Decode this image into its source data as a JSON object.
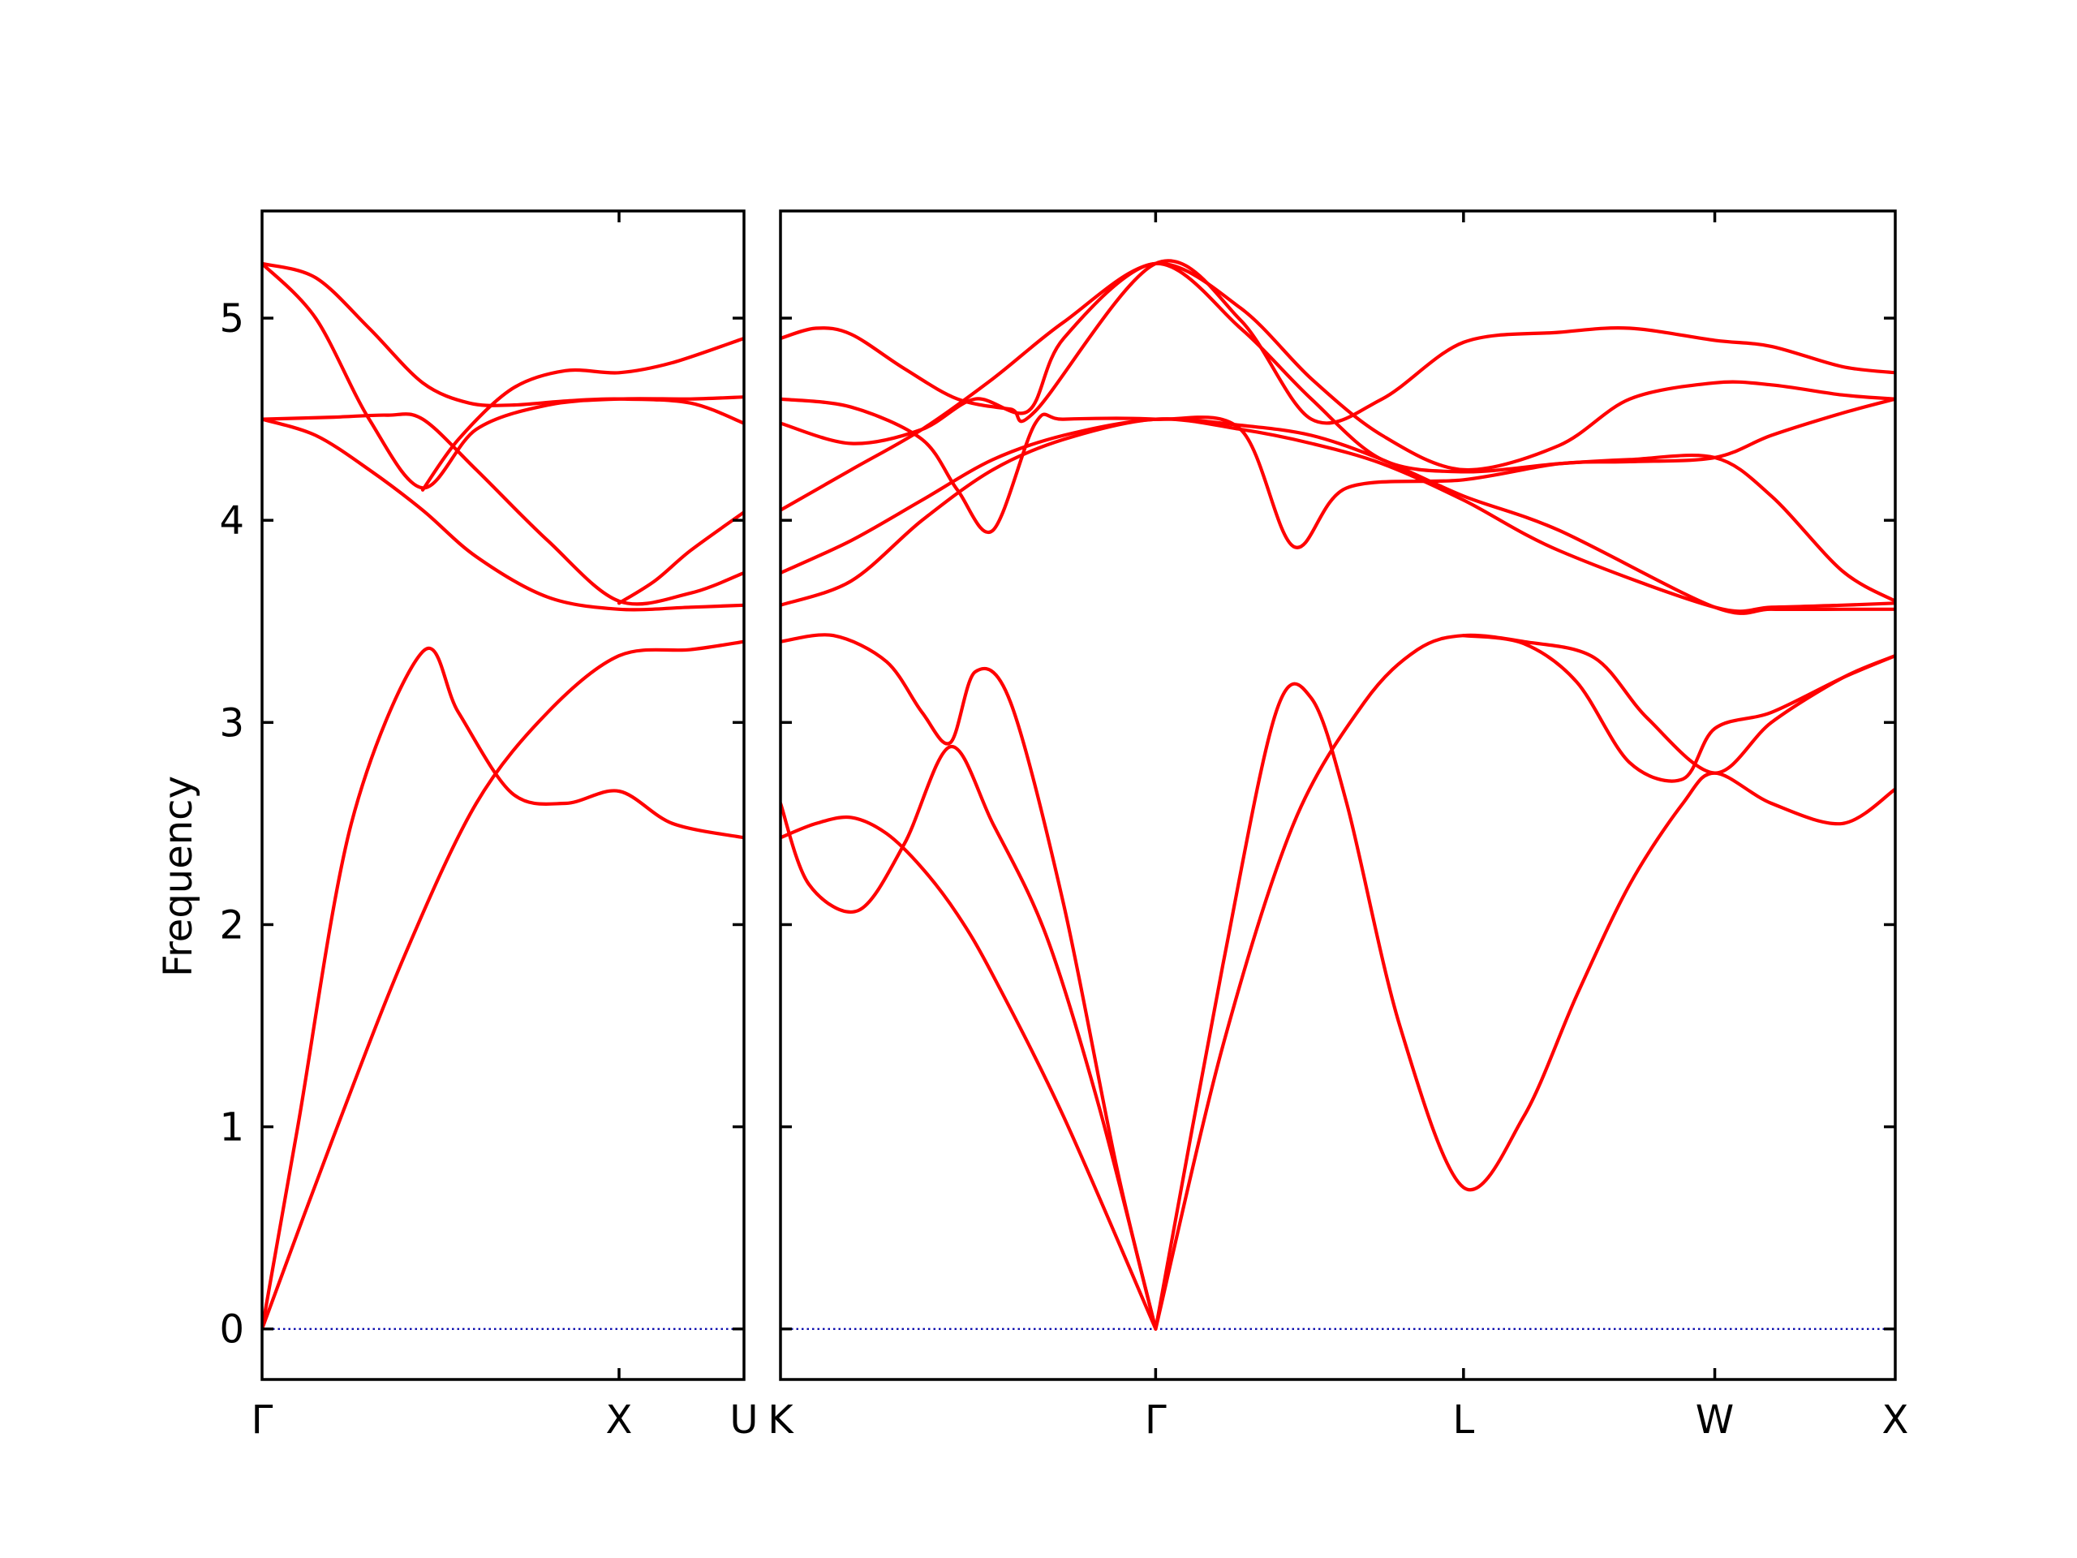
{
  "chart_data": {
    "type": "line",
    "ylabel": "Frequency",
    "ylim": [
      -0.25,
      5.53
    ],
    "yticks": [
      0,
      1,
      2,
      3,
      4,
      5
    ],
    "colors": {
      "bands": "#ff0000",
      "zero_line": "#0000aa",
      "axes": "#000000"
    },
    "panels": [
      {
        "xticks": [
          "Γ",
          "X",
          "U"
        ],
        "xlim": [
          0,
          1.35
        ],
        "xtick_positions": [
          0,
          1.0,
          1.35
        ],
        "series": [
          {
            "x": [
              0,
              0.1,
              0.25,
              0.45,
              0.55,
              0.7,
              0.85,
              1.0,
              1.15,
              1.35
            ],
            "y": [
              0,
              1.0,
              2.5,
              3.35,
              3.05,
              2.65,
              2.6,
              2.66,
              2.5,
              2.43
            ]
          },
          {
            "x": [
              0,
              0.2,
              0.4,
              0.6,
              0.8,
              1.0,
              1.2,
              1.35
            ],
            "y": [
              0,
              0.95,
              1.85,
              2.6,
              3.05,
              3.33,
              3.36,
              3.4
            ]
          },
          {
            "x": [
              0,
              0.15,
              0.3,
              0.45,
              0.6,
              0.8,
              1.0,
              1.2,
              1.35
            ],
            "y": [
              4.5,
              4.42,
              4.25,
              4.05,
              3.82,
              3.62,
              3.56,
              3.57,
              3.58
            ]
          },
          {
            "x": [
              0,
              0.2,
              0.35,
              0.45,
              0.6,
              0.8,
              1.0,
              1.2,
              1.35
            ],
            "y": [
              4.5,
              4.51,
              4.52,
              4.5,
              4.25,
              3.9,
              3.6,
              3.64,
              3.74
            ]
          },
          {
            "x": [
              0,
              0.15,
              0.3,
              0.45,
              0.6,
              0.8,
              1.0,
              1.2,
              1.35
            ],
            "y": [
              5.27,
              5.0,
              4.5,
              4.16,
              4.45,
              4.57,
              4.6,
              4.6,
              4.61
            ]
          },
          {
            "x": [
              0,
              0.15,
              0.3,
              0.45,
              0.58,
              0.7,
              0.85,
              1.0,
              1.2,
              1.35
            ],
            "y": [
              5.27,
              5.2,
              4.95,
              4.68,
              4.58,
              4.57,
              4.59,
              4.6,
              4.58,
              4.48
            ]
          },
          {
            "x": [
              0.45,
              0.55,
              0.7,
              0.85,
              1.0,
              1.15,
              1.35
            ],
            "y": [
              4.15,
              4.4,
              4.65,
              4.74,
              4.73,
              4.78,
              4.9
            ]
          },
          {
            "x": [
              1.0,
              1.1,
              1.2,
              1.35
            ],
            "y": [
              3.59,
              3.7,
              3.85,
              4.04
            ]
          }
        ]
      },
      {
        "xticks": [
          "K",
          "Γ",
          "L",
          "W",
          "X"
        ],
        "xlim": [
          0,
          3.15
        ],
        "xtick_positions": [
          0,
          1.06,
          1.93,
          2.64,
          3.15
        ],
        "series": [
          {
            "x": [
              0,
              0.1,
              0.2,
              0.3,
              0.4,
              0.5,
              0.6,
              0.8,
              1.06
            ],
            "y": [
              2.43,
              2.5,
              2.53,
              2.45,
              2.28,
              2.05,
              1.75,
              1.05,
              0
            ]
          },
          {
            "x": [
              0,
              0.08,
              0.22,
              0.35,
              0.48,
              0.6,
              0.75,
              0.9,
              1.06
            ],
            "y": [
              2.6,
              2.2,
              2.07,
              2.4,
              2.88,
              2.5,
              1.95,
              1.1,
              0
            ]
          },
          {
            "x": [
              0,
              0.15,
              0.3,
              0.4,
              0.48,
              0.55,
              0.65,
              0.8,
              0.95,
              1.06
            ],
            "y": [
              3.4,
              3.43,
              3.3,
              3.05,
              2.9,
              3.25,
              3.1,
              2.1,
              0.8,
              0
            ]
          },
          {
            "x": [
              1.06,
              1.25,
              1.4,
              1.5,
              1.6,
              1.75,
              1.93,
              2.1,
              2.25,
              2.4,
              2.55,
              2.64,
              2.8,
              3.0,
              3.15
            ],
            "y": [
              0,
              1.8,
              3.05,
              3.12,
              2.6,
              1.5,
              0.7,
              1.05,
              1.65,
              2.2,
              2.6,
              2.75,
              2.6,
              2.5,
              2.67
            ]
          },
          {
            "x": [
              1.06,
              1.25,
              1.45,
              1.65,
              1.8,
              1.93,
              2.1,
              2.3,
              2.45,
              2.64,
              2.8,
              3.0,
              3.15
            ],
            "y": [
              0,
              1.4,
              2.5,
              3.1,
              3.36,
              3.43,
              3.4,
              3.32,
              3.02,
              2.75,
              3.0,
              3.22,
              3.33
            ]
          },
          {
            "x": [
              1.93,
              2.1,
              2.25,
              2.4,
              2.55,
              2.64,
              2.8,
              3.0,
              3.15
            ],
            "y": [
              3.43,
              3.39,
              3.2,
              2.8,
              2.72,
              2.97,
              3.05,
              3.22,
              3.33
            ]
          },
          {
            "x": [
              0,
              0.2,
              0.4,
              0.6,
              0.8,
              1.06,
              1.3,
              1.5,
              1.7,
              1.93,
              2.2,
              2.64,
              2.8,
              3.0,
              3.15
            ],
            "y": [
              3.58,
              3.7,
              4.0,
              4.25,
              4.4,
              4.5,
              4.45,
              4.38,
              4.28,
              4.1,
              3.85,
              3.57,
              3.57,
              3.58,
              3.59
            ]
          },
          {
            "x": [
              0,
              0.2,
              0.4,
              0.6,
              0.8,
              1.06,
              1.3,
              1.5,
              1.7,
              1.93,
              2.2,
              2.64,
              2.8,
              3.0,
              3.15
            ],
            "y": [
              3.74,
              3.9,
              4.1,
              4.3,
              4.42,
              4.5,
              4.47,
              4.42,
              4.3,
              4.12,
              3.95,
              3.57,
              3.56,
              3.56,
              3.56
            ]
          },
          {
            "x": [
              0,
              0.2,
              0.4,
              0.5,
              0.6,
              0.72,
              0.8,
              1.06,
              1.3,
              1.45,
              1.6,
              1.93,
              2.2,
              2.4,
              2.64,
              2.8,
              3.0,
              3.15
            ],
            "y": [
              4.6,
              4.56,
              4.4,
              4.15,
              3.95,
              4.48,
              4.5,
              4.5,
              4.45,
              3.87,
              4.16,
              4.2,
              4.28,
              4.29,
              4.31,
              4.42,
              4.53,
              4.6
            ]
          },
          {
            "x": [
              0,
              0.2,
              0.4,
              0.55,
              0.7,
              0.8,
              1.06,
              1.3,
              1.5,
              1.7,
              1.93,
              2.2,
              2.4,
              2.64,
              2.8,
              3.0,
              3.15
            ],
            "y": [
              4.48,
              4.38,
              4.45,
              4.6,
              4.54,
              4.9,
              5.27,
              4.95,
              4.6,
              4.3,
              4.24,
              4.28,
              4.3,
              4.31,
              4.12,
              3.75,
              3.6
            ]
          },
          {
            "x": [
              0,
              0.2,
              0.4,
              0.6,
              0.8,
              1.06,
              1.3,
              1.5,
              1.7,
              1.93,
              2.2,
              2.4,
              2.64,
              2.8,
              3.0,
              3.15
            ],
            "y": [
              4.05,
              4.25,
              4.45,
              4.7,
              4.98,
              5.27,
              5.05,
              4.7,
              4.42,
              4.25,
              4.37,
              4.6,
              4.68,
              4.67,
              4.62,
              4.6
            ]
          },
          {
            "x": [
              0,
              0.1,
              0.2,
              0.35,
              0.5,
              0.65,
              0.72,
              1.06,
              1.3,
              1.5,
              1.7,
              1.93,
              2.2,
              2.4,
              2.64,
              2.8,
              3.0,
              3.15
            ],
            "y": [
              4.9,
              4.95,
              4.92,
              4.75,
              4.6,
              4.55,
              4.54,
              5.27,
              4.99,
              4.5,
              4.6,
              4.88,
              4.93,
              4.95,
              4.89,
              4.86,
              4.76,
              4.73
            ]
          }
        ]
      }
    ]
  }
}
